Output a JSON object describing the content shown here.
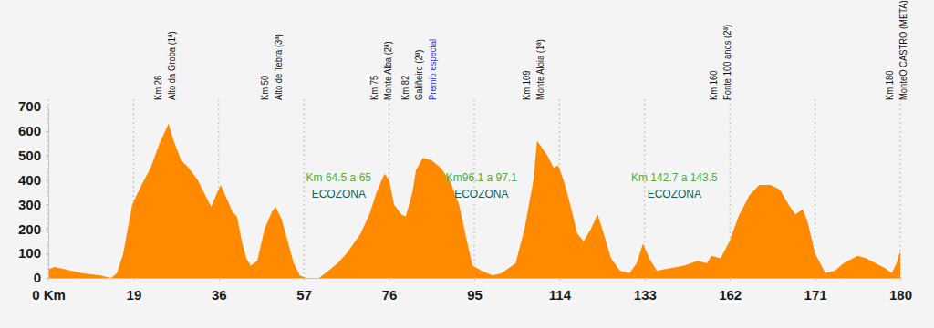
{
  "chart_data": {
    "type": "area",
    "color": "#ff8a00",
    "x": [
      0,
      1.4,
      7.5,
      11.6,
      14,
      15.3,
      16.7,
      18.7,
      20.6,
      22.4,
      24.2,
      26,
      27,
      28.5,
      30,
      31.8,
      33.5,
      34.5,
      35.7,
      36.5,
      37.8,
      39.4,
      40.5,
      41.7,
      42.8,
      43.9,
      45.5,
      47.3,
      49.1,
      50,
      51.5,
      53,
      54.5,
      56,
      57.5,
      60.4,
      62.5,
      64.5,
      66.5,
      69.6,
      71.6,
      73.2,
      74.6,
      75,
      76,
      77.1,
      78.7,
      79.7,
      81.2,
      82,
      83.5,
      85.5,
      87.5,
      89.5,
      91.6,
      93,
      94.6,
      96.6,
      99.1,
      101.1,
      104.2,
      106.2,
      108.2,
      109,
      111.3,
      112.7,
      113.7,
      114.9,
      116.4,
      118,
      119.4,
      121,
      122.5,
      123.9,
      125.5,
      127.5,
      129.6,
      131.2,
      132.6,
      134.6,
      137.1,
      141.8,
      146.4,
      151.1,
      154.2,
      155.7,
      158.8,
      161.9,
      162.9,
      164.1,
      165.1,
      166.3,
      167.3,
      168.2,
      168.9,
      169.7,
      170.2,
      171,
      172.1,
      173.1,
      174,
      175.5,
      176.4,
      177.4,
      178.4,
      179.1,
      179.6,
      180
    ],
    "values": [
      35,
      45,
      20,
      10,
      0,
      20,
      100,
      300,
      380,
      450,
      550,
      630,
      560,
      480,
      450,
      400,
      330,
      290,
      350,
      380,
      330,
      270,
      250,
      150,
      80,
      50,
      70,
      200,
      270,
      290,
      240,
      150,
      60,
      10,
      0,
      0,
      30,
      60,
      100,
      180,
      260,
      350,
      410,
      425,
      400,
      300,
      260,
      250,
      350,
      440,
      490,
      480,
      450,
      400,
      300,
      180,
      50,
      30,
      10,
      20,
      60,
      200,
      400,
      560,
      500,
      450,
      460,
      400,
      300,
      180,
      150,
      200,
      260,
      180,
      80,
      30,
      20,
      60,
      140,
      80,
      30,
      40,
      50,
      70,
      60,
      90,
      80,
      150,
      250,
      340,
      380,
      380,
      360,
      300,
      260,
      280,
      230,
      100,
      20,
      30,
      60,
      90,
      80,
      60,
      40,
      20,
      60,
      110
    ],
    "xlim": [
      0,
      180
    ],
    "xticks": [
      {
        "value": 0,
        "label": "0 Km"
      },
      19,
      36,
      57,
      76,
      95,
      114,
      133,
      162,
      171,
      180
    ],
    "ylim": [
      0,
      700
    ],
    "yticks": [
      0,
      100,
      200,
      300,
      400,
      500,
      600,
      700
    ],
    "grid": "x",
    "annotations": [
      {
        "x": 26,
        "km": "Km 26",
        "name": "Alto da Groba (1ª)"
      },
      {
        "x": 50,
        "km": "Km 50",
        "name": "Alto de Tebra (3ª)"
      },
      {
        "x": 75,
        "km": "Km 75",
        "name": "Monte Alba (2ª)"
      },
      {
        "x": 82,
        "km": "Km 82",
        "name": "Galiñeiro (2ª)",
        "note": "Premio especial"
      },
      {
        "x": 109,
        "km": "Km 109",
        "name": "Monte Aloia (1ª)"
      },
      {
        "x": 160,
        "km": "Km 160",
        "name": "Fonte 100 anos (2ª)"
      },
      {
        "x": 180,
        "km": "Km 180",
        "name": "MonteO CASTRO (META)"
      }
    ],
    "zones": [
      {
        "range": [
          64.5,
          65
        ],
        "label": "Km 64.5 a 65",
        "name": "ECOZONA"
      },
      {
        "range": [
          96.1,
          97.1
        ],
        "label": "Km96.1 a 97.1",
        "name": "ECOZONA"
      },
      {
        "range": [
          142.7,
          143.5
        ],
        "label": "Km 142.7 a 143.5",
        "name": "ECOZONA"
      }
    ]
  }
}
